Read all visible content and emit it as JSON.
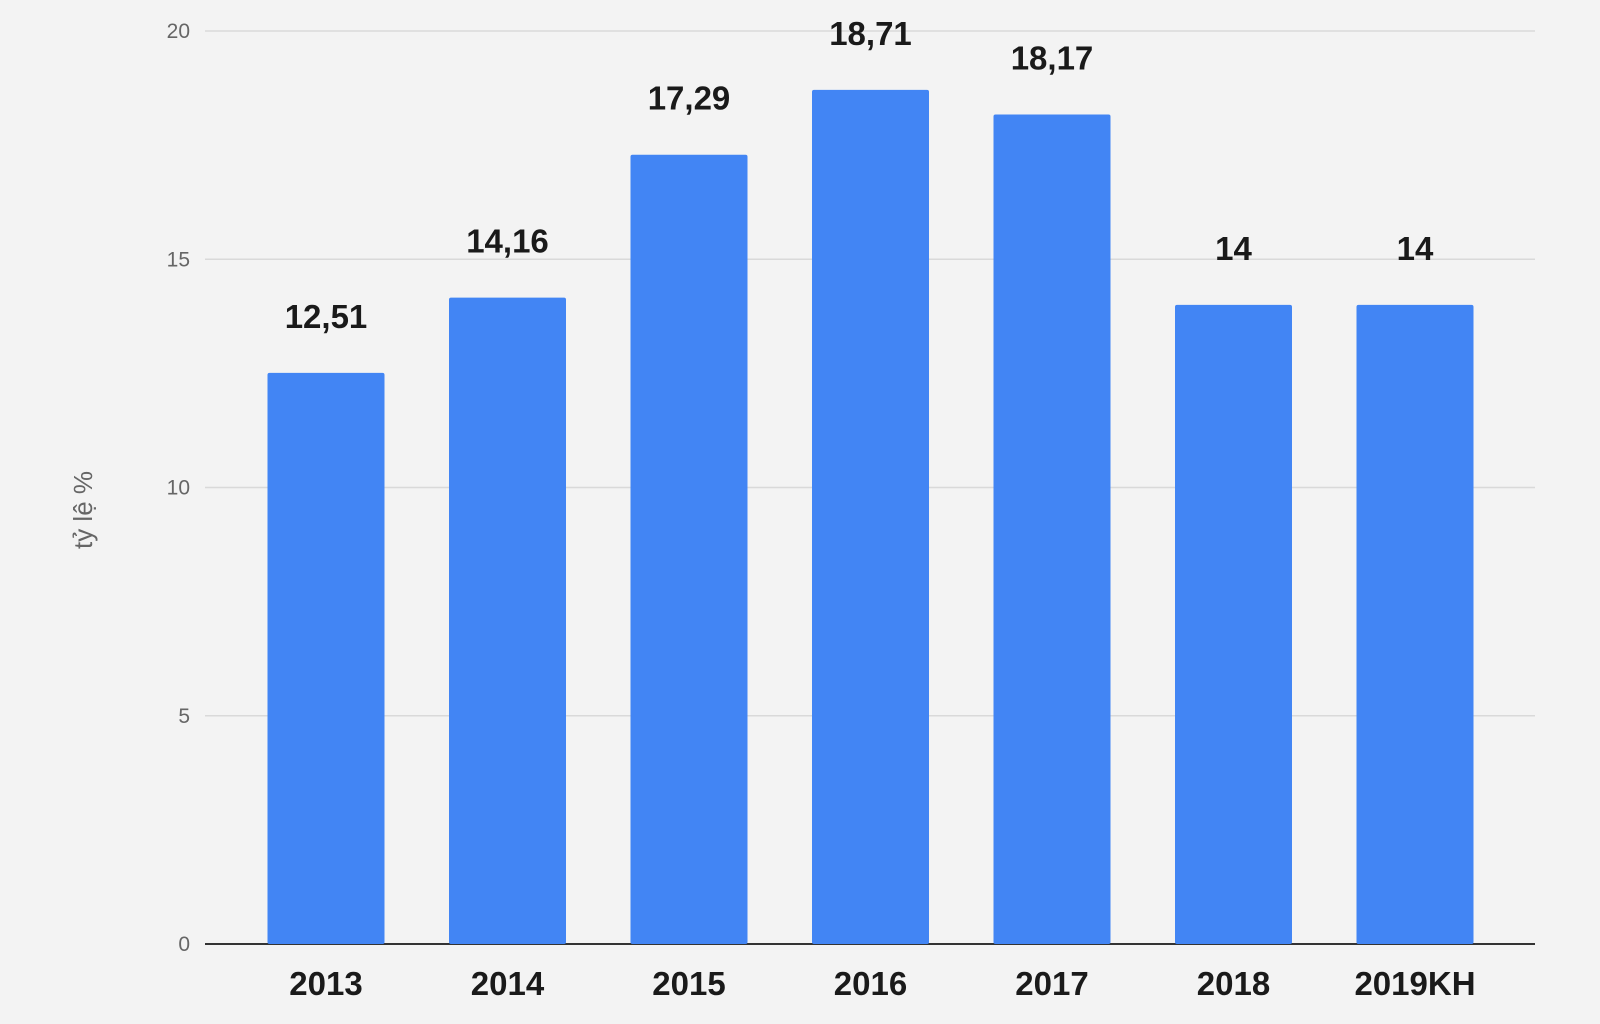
{
  "chart_data": {
    "type": "bar",
    "title": "",
    "xlabel": "",
    "ylabel": "tỷ lệ %",
    "ylim": [
      0,
      20
    ],
    "yticks": [
      0,
      5,
      10,
      15,
      20
    ],
    "grid": true,
    "categories": [
      "2013",
      "2014",
      "2015",
      "2016",
      "2017",
      "2018",
      "2019KH"
    ],
    "values": [
      12.51,
      14.16,
      17.29,
      18.71,
      18.17,
      14,
      14
    ],
    "data_labels": [
      "12,51",
      "14,16",
      "17,29",
      "18,71",
      "18,17",
      "14",
      "14"
    ],
    "colors": {
      "bar": "#4285f4",
      "background": "#f3f3f3",
      "grid": "#d9d9d9",
      "axis": "#333333"
    }
  }
}
